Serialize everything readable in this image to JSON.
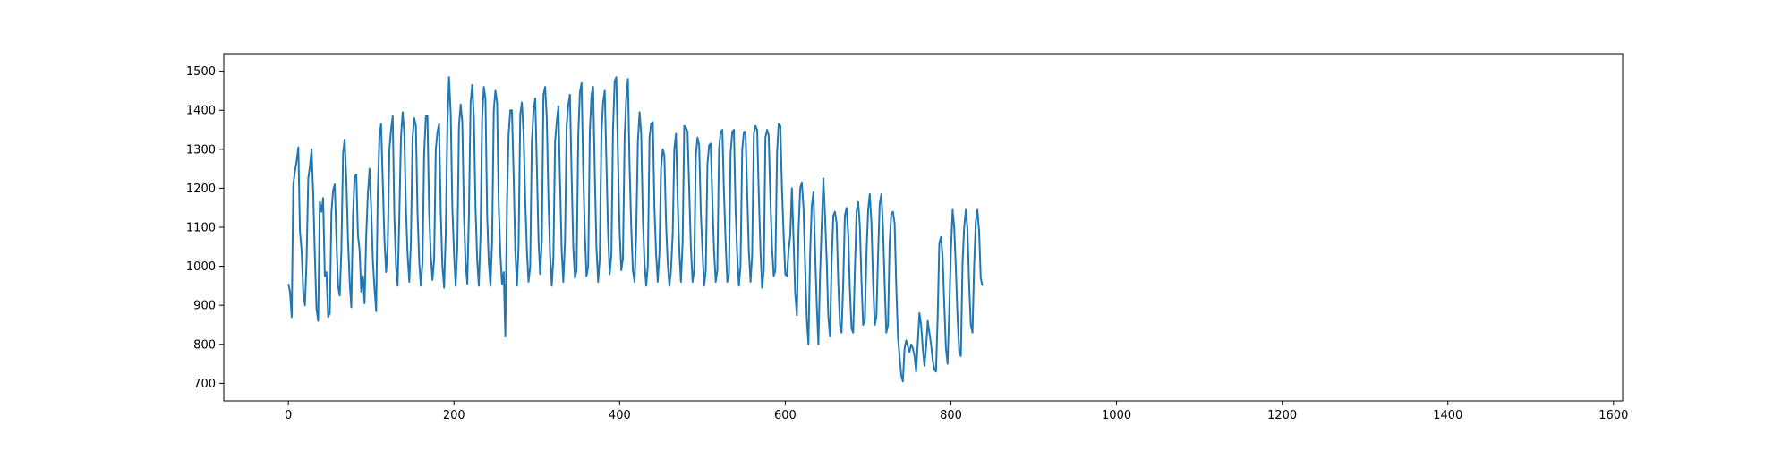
{
  "chart_data": {
    "type": "line",
    "title": "",
    "xlabel": "",
    "ylabel": "",
    "xlim": [
      -78,
      1611
    ],
    "ylim": [
      655,
      1545
    ],
    "xticks": [
      0,
      200,
      400,
      600,
      800,
      1000,
      1200,
      1400,
      1600
    ],
    "yticks": [
      700,
      800,
      900,
      1000,
      1100,
      1200,
      1300,
      1400,
      1500
    ],
    "grid": false,
    "legend": "none",
    "line_color": "#1f77b4",
    "series": [
      {
        "name": "",
        "x_start": 0,
        "x_step": 2,
        "values": [
          955,
          935,
          870,
          1210,
          1245,
          1270,
          1305,
          1090,
          1040,
          935,
          900,
          1015,
          1225,
          1255,
          1300,
          1190,
          1025,
          890,
          860,
          1165,
          1140,
          1175,
          975,
          985,
          870,
          880,
          1140,
          1195,
          1210,
          1070,
          950,
          925,
          1040,
          1290,
          1325,
          1220,
          1070,
          960,
          895,
          1130,
          1230,
          1235,
          1080,
          1040,
          935,
          975,
          905,
          1080,
          1185,
          1250,
          1150,
          1015,
          945,
          885,
          1190,
          1335,
          1365,
          1215,
          1070,
          985,
          1050,
          1300,
          1350,
          1385,
          1130,
          1000,
          950,
          1130,
          1330,
          1395,
          1345,
          1145,
          1030,
          960,
          1060,
          1330,
          1380,
          1360,
          1140,
          1010,
          950,
          1010,
          1290,
          1385,
          1385,
          1140,
          1030,
          965,
          1020,
          1300,
          1345,
          1365,
          1135,
          1000,
          945,
          1080,
          1365,
          1485,
          1390,
          1150,
          1030,
          950,
          1050,
          1360,
          1415,
          1370,
          1130,
          1010,
          955,
          1130,
          1420,
          1465,
          1380,
          1150,
          1015,
          950,
          1080,
          1380,
          1460,
          1430,
          1130,
          1010,
          950,
          1060,
          1400,
          1450,
          1420,
          1160,
          1030,
          955,
          985,
          820,
          1165,
          1340,
          1400,
          1400,
          1230,
          1040,
          950,
          1050,
          1390,
          1420,
          1340,
          1175,
          1040,
          960,
          1000,
          1315,
          1400,
          1430,
          1260,
          1065,
          980,
          1065,
          1440,
          1460,
          1380,
          1170,
          1030,
          950,
          1020,
          1320,
          1370,
          1410,
          1220,
          1040,
          960,
          1065,
          1360,
          1415,
          1440,
          1230,
          1050,
          970,
          990,
          1335,
          1445,
          1470,
          1250,
          1080,
          975,
          1000,
          1345,
          1440,
          1460,
          1235,
          1050,
          960,
          1020,
          1340,
          1420,
          1450,
          1270,
          1090,
          980,
          1030,
          1350,
          1475,
          1485,
          1280,
          1090,
          990,
          1020,
          1330,
          1430,
          1480,
          1260,
          1100,
          990,
          960,
          1080,
          1320,
          1395,
          1340,
          1120,
          1010,
          950,
          1000,
          1330,
          1365,
          1370,
          1150,
          1030,
          960,
          1035,
          1250,
          1300,
          1285,
          1110,
          1010,
          950,
          990,
          1080,
          1300,
          1340,
          1175,
          1040,
          960,
          1060,
          1360,
          1355,
          1345,
          1195,
          1050,
          960,
          990,
          1285,
          1330,
          1310,
          1140,
          1040,
          950,
          990,
          1260,
          1310,
          1315,
          1165,
          1040,
          960,
          990,
          1300,
          1345,
          1350,
          1190,
          1060,
          960,
          980,
          1290,
          1345,
          1350,
          1145,
          1030,
          950,
          1000,
          1300,
          1345,
          1345,
          1185,
          1040,
          960,
          1030,
          1340,
          1360,
          1350,
          1185,
          1040,
          945,
          990,
          1330,
          1350,
          1335,
          1170,
          1050,
          975,
          990,
          1290,
          1365,
          1360,
          1200,
          1080,
          980,
          975,
          1040,
          1080,
          1200,
          1065,
          930,
          875,
          1090,
          1200,
          1215,
          1150,
          1005,
          860,
          800,
          1035,
          1155,
          1190,
          1040,
          900,
          800,
          980,
          1105,
          1225,
          1130,
          1015,
          870,
          820,
          1010,
          1130,
          1140,
          1110,
          960,
          850,
          830,
          960,
          1130,
          1150,
          1080,
          940,
          840,
          830,
          990,
          1140,
          1165,
          1105,
          960,
          850,
          860,
          1030,
          1145,
          1185,
          1110,
          960,
          850,
          870,
          1030,
          1160,
          1185,
          1100,
          950,
          830,
          850,
          1060,
          1135,
          1140,
          1110,
          950,
          820,
          770,
          720,
          705,
          790,
          810,
          795,
          780,
          800,
          790,
          770,
          730,
          805,
          880,
          850,
          790,
          745,
          790,
          860,
          830,
          800,
          760,
          735,
          730,
          870,
          1060,
          1075,
          1025,
          900,
          790,
          750,
          890,
          1040,
          1145,
          1100,
          990,
          870,
          780,
          770,
          1010,
          1100,
          1145,
          1095,
          950,
          850,
          830,
          1000,
          1115,
          1145,
          1090,
          970,
          950
        ]
      }
    ]
  }
}
